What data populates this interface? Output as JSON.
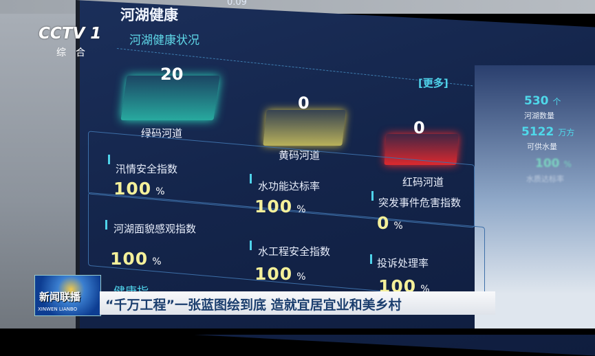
{
  "broadcast": {
    "channel_logo": "CCTV 1",
    "channel_sub": "综合",
    "program_logo": "新闻联播",
    "program_logo_pinyin": "XINWEN LIANBO",
    "headline": "“千万工程”一张蓝图绘到底 造就宜居宜业和美乡村"
  },
  "dashboard": {
    "top_partial": "0.09",
    "title": "河湖健康",
    "section": "河湖健康状况",
    "more_link": "[更多]",
    "codes": [
      {
        "value": "20",
        "label": "绿码河道",
        "color": "#2fe0c0"
      },
      {
        "value": "0",
        "label": "黄码河道",
        "color": "#f0e060"
      },
      {
        "value": "0",
        "label": "红码河道",
        "color": "#ff2a2a"
      }
    ],
    "metrics": [
      {
        "label": "汛情安全指数",
        "value": "100",
        "unit": "%"
      },
      {
        "label": "水功能达标率",
        "value": "100",
        "unit": "%"
      },
      {
        "label": "突发事件危害指数",
        "value": "0",
        "unit": "%"
      },
      {
        "label": "河湖面貌感观指数",
        "value": "100",
        "unit": "%"
      },
      {
        "label": "水工程安全指数",
        "value": "100",
        "unit": "%"
      },
      {
        "label": "投诉处理率",
        "value": "100",
        "unit": "%"
      }
    ],
    "bottom_partial": "健康指",
    "side_stats": [
      {
        "value": "530",
        "unit": "个",
        "label": "河湖数量"
      },
      {
        "value": "5122",
        "unit": "万方",
        "label": "可供水量"
      },
      {
        "value": "100",
        "unit": "%",
        "label": "水质达标率"
      }
    ]
  }
}
